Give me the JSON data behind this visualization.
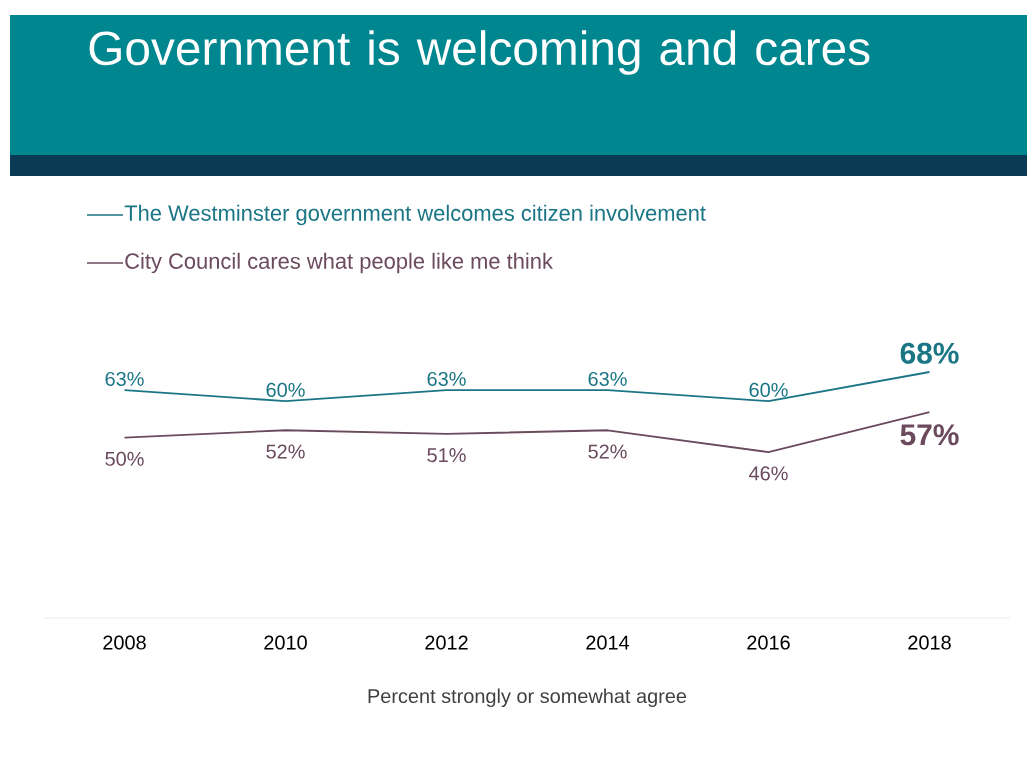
{
  "chart_data": {
    "type": "line",
    "title": "Government is welcoming and cares",
    "xlabel": "Percent strongly or somewhat agree",
    "categories": [
      "2008",
      "2010",
      "2012",
      "2014",
      "2016",
      "2018"
    ],
    "legend": "top",
    "series": [
      {
        "name": "The Westminster government welcomes citizen involvement",
        "color": "#1a7585",
        "values": [
          63,
          60,
          63,
          63,
          60,
          68
        ],
        "value_labels": [
          "63%",
          "60%",
          "63%",
          "63%",
          "60%",
          "68%"
        ]
      },
      {
        "name": "City Council cares what people like me think",
        "color": "#6b4a5e",
        "values": [
          50,
          52,
          51,
          52,
          46,
          57
        ],
        "value_labels": [
          "50%",
          "52%",
          "51%",
          "52%",
          "46%",
          "57%"
        ]
      }
    ]
  }
}
